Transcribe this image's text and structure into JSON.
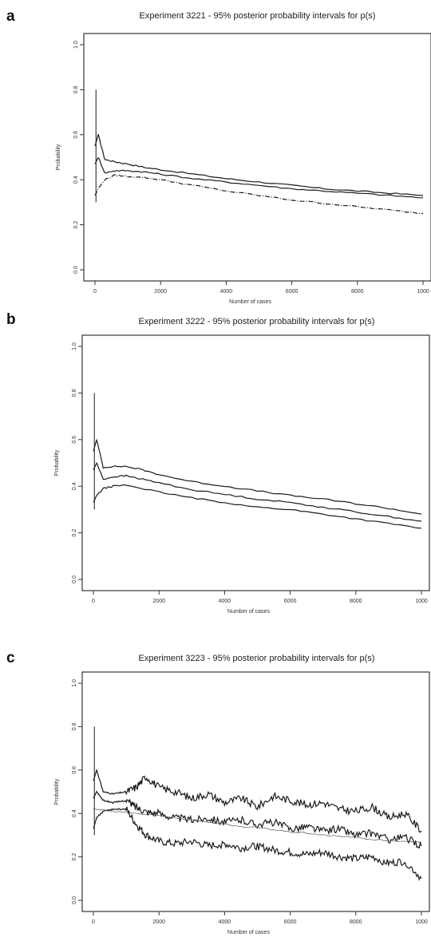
{
  "figure": {
    "panels": [
      {
        "letter": "a",
        "title": "Experiment 3221 - 95% posterior probability intervals for p(s)"
      },
      {
        "letter": "b",
        "title": "Experiment 3222 - 95% posterior probability intervals for p(s)"
      },
      {
        "letter": "c",
        "title": "Experiment 3223 - 95% posterior probability intervals for p(s)"
      }
    ]
  },
  "chart_data": [
    {
      "type": "line",
      "title": "Experiment 3221 - 95% posterior probability intervals for p(s)",
      "xlabel": "Number of cases",
      "ylabel": "Probability",
      "xlim": [
        0,
        10000
      ],
      "ylim": [
        0.0,
        1.0
      ],
      "xticks": [
        "0",
        "2000",
        "4000",
        "6000",
        "8000",
        "1000"
      ],
      "yticks": [
        "0.0",
        "0.2",
        "0.4",
        "0.6",
        "0.8",
        "1.0"
      ],
      "grid": false,
      "x": [
        0,
        100,
        300,
        600,
        1000,
        1500,
        2000,
        3000,
        4000,
        5000,
        6000,
        7000,
        8000,
        9000,
        10000
      ],
      "series": [
        {
          "values": [
            0.55,
            0.6,
            0.49,
            0.48,
            0.47,
            0.455,
            0.445,
            0.425,
            0.405,
            0.39,
            0.375,
            0.36,
            0.35,
            0.34,
            0.33
          ]
        },
        {
          "values": [
            0.47,
            0.5,
            0.43,
            0.44,
            0.44,
            0.435,
            0.425,
            0.405,
            0.39,
            0.375,
            0.36,
            0.35,
            0.34,
            0.33,
            0.32
          ]
        },
        {
          "values": [
            0.33,
            0.36,
            0.4,
            0.42,
            0.415,
            0.41,
            0.4,
            0.375,
            0.35,
            0.33,
            0.31,
            0.295,
            0.28,
            0.265,
            0.25
          ]
        }
      ]
    },
    {
      "type": "line",
      "title": "Experiment 3222 - 95% posterior probability intervals for p(s)",
      "xlabel": "Number of cases",
      "ylabel": "Probability",
      "xlim": [
        0,
        10000
      ],
      "ylim": [
        0.0,
        1.0
      ],
      "xticks": [
        "0",
        "2000",
        "4000",
        "6000",
        "8000",
        "1000"
      ],
      "yticks": [
        "0.0",
        "0.2",
        "0.4",
        "0.6",
        "0.8",
        "1.0"
      ],
      "grid": false,
      "x": [
        0,
        100,
        300,
        600,
        1000,
        1500,
        2000,
        3000,
        4000,
        5000,
        6000,
        7000,
        8000,
        9000,
        10000
      ],
      "series": [
        {
          "values": [
            0.55,
            0.6,
            0.48,
            0.485,
            0.485,
            0.47,
            0.45,
            0.42,
            0.4,
            0.38,
            0.36,
            0.345,
            0.325,
            0.305,
            0.28
          ]
        },
        {
          "values": [
            0.47,
            0.5,
            0.43,
            0.44,
            0.445,
            0.43,
            0.415,
            0.385,
            0.365,
            0.345,
            0.33,
            0.31,
            0.29,
            0.27,
            0.25
          ]
        },
        {
          "values": [
            0.33,
            0.36,
            0.39,
            0.4,
            0.405,
            0.39,
            0.375,
            0.35,
            0.33,
            0.31,
            0.3,
            0.28,
            0.26,
            0.24,
            0.22
          ]
        }
      ]
    },
    {
      "type": "line",
      "title": "Experiment 3223 - 95% posterior probability intervals for p(s)",
      "xlabel": "Number of cases",
      "ylabel": "Probability",
      "xlim": [
        0,
        10000
      ],
      "ylim": [
        0.0,
        1.0
      ],
      "xticks": [
        "0",
        "2000",
        "4000",
        "6000",
        "8000",
        "1000"
      ],
      "yticks": [
        "0.0",
        "0.2",
        "0.4",
        "0.6",
        "0.8",
        "1.0"
      ],
      "grid": false,
      "x": [
        0,
        100,
        300,
        600,
        1000,
        1300,
        1600,
        2000,
        2500,
        3000,
        3500,
        4000,
        4500,
        5000,
        5500,
        6000,
        6500,
        7000,
        7500,
        8000,
        8500,
        9000,
        9500,
        10000
      ],
      "series": [
        {
          "values": [
            0.55,
            0.6,
            0.5,
            0.49,
            0.5,
            0.52,
            0.57,
            0.52,
            0.5,
            0.47,
            0.49,
            0.45,
            0.47,
            0.43,
            0.48,
            0.46,
            0.44,
            0.45,
            0.42,
            0.41,
            0.43,
            0.38,
            0.4,
            0.32
          ]
        },
        {
          "values": [
            0.47,
            0.5,
            0.46,
            0.45,
            0.46,
            0.43,
            0.41,
            0.4,
            0.38,
            0.37,
            0.38,
            0.36,
            0.37,
            0.35,
            0.36,
            0.33,
            0.34,
            0.32,
            0.33,
            0.3,
            0.31,
            0.28,
            0.29,
            0.25
          ]
        },
        {
          "values": [
            0.33,
            0.38,
            0.41,
            0.42,
            0.42,
            0.35,
            0.3,
            0.27,
            0.26,
            0.27,
            0.25,
            0.26,
            0.24,
            0.25,
            0.23,
            0.22,
            0.21,
            0.22,
            0.2,
            0.19,
            0.2,
            0.17,
            0.18,
            0.1
          ]
        },
        {
          "values": [
            0.42,
            0.42,
            0.415,
            0.41,
            0.405,
            0.4,
            0.395,
            0.39,
            0.38,
            0.37,
            0.36,
            0.35,
            0.34,
            0.335,
            0.325,
            0.315,
            0.31,
            0.3,
            0.295,
            0.29,
            0.28,
            0.275,
            0.27,
            0.265
          ]
        }
      ]
    }
  ]
}
